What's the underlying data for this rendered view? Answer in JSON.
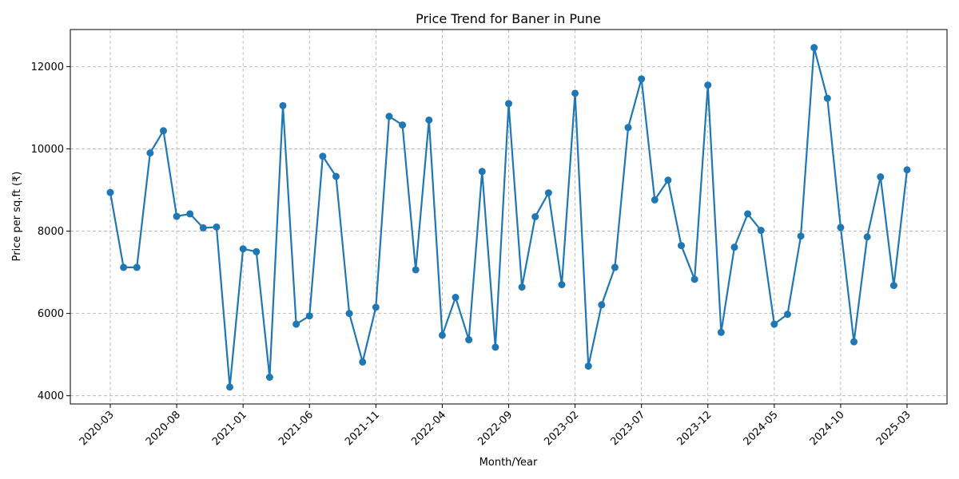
{
  "chart_data": {
    "type": "line",
    "title": "Price Trend for Baner in Pune",
    "xlabel": "Month/Year",
    "ylabel": "Price per sq.ft (₹)",
    "color": "#1f77b4",
    "grid": true,
    "marker": "circle",
    "ylim": [
      3800,
      12900
    ],
    "yticks": [
      4000,
      6000,
      8000,
      10000,
      12000
    ],
    "xticks": [
      "2020-03",
      "2020-08",
      "2021-01",
      "2021-06",
      "2021-11",
      "2022-04",
      "2022-09",
      "2023-02",
      "2023-07",
      "2023-12",
      "2024-05",
      "2024-10",
      "2025-03"
    ],
    "x": [
      "2020-03",
      "2020-04",
      "2020-05",
      "2020-06",
      "2020-07",
      "2020-08",
      "2020-09",
      "2020-10",
      "2020-11",
      "2020-12",
      "2021-01",
      "2021-02",
      "2021-03",
      "2021-04",
      "2021-05",
      "2021-06",
      "2021-07",
      "2021-08",
      "2021-09",
      "2021-10",
      "2021-11",
      "2021-12",
      "2022-01",
      "2022-02",
      "2022-03",
      "2022-04",
      "2022-05",
      "2022-06",
      "2022-07",
      "2022-08",
      "2022-09",
      "2022-10",
      "2022-11",
      "2022-12",
      "2023-01",
      "2023-02",
      "2023-03",
      "2023-04",
      "2023-05",
      "2023-06",
      "2023-07",
      "2023-08",
      "2023-09",
      "2023-10",
      "2023-11",
      "2023-12",
      "2024-01",
      "2024-02",
      "2024-03",
      "2024-04",
      "2024-05",
      "2024-06",
      "2024-07",
      "2024-08",
      "2024-09",
      "2024-10",
      "2024-11",
      "2024-12",
      "2025-01",
      "2025-02",
      "2025-03"
    ],
    "series": [
      {
        "values": [
          8940,
          7120,
          7120,
          9900,
          10440,
          8360,
          8420,
          8080,
          8100,
          4210,
          7570,
          7500,
          4450,
          11050,
          5740,
          5940,
          9820,
          9330,
          6000,
          4820,
          6150,
          10790,
          10580,
          7060,
          10700,
          5470,
          6390,
          5360,
          9450,
          5180,
          11100,
          6640,
          8350,
          8930,
          6700,
          11350,
          4720,
          6210,
          7120,
          10520,
          11700,
          8760,
          9240,
          7650,
          6830,
          11550,
          5540,
          7610,
          8420,
          8020,
          5740,
          5980,
          7880,
          12460,
          11230,
          8090,
          5310,
          7860,
          9320,
          6680,
          9490
        ]
      }
    ]
  }
}
